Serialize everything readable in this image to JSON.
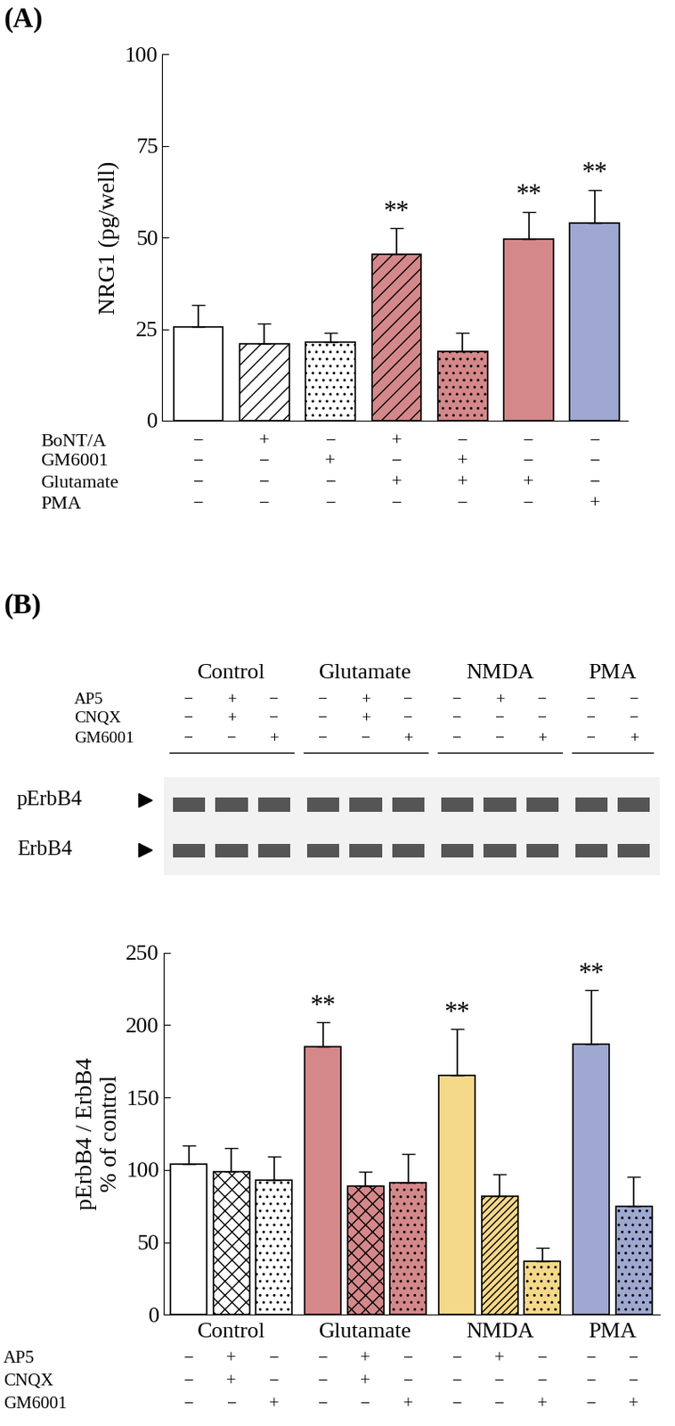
{
  "chart_data": [
    {
      "type": "bar",
      "panel_label": "(A)",
      "ylabel": "NRG1 (pg/well)",
      "values": [
        25.5,
        21,
        21.5,
        45.5,
        19,
        49.5,
        54
      ],
      "error": [
        6,
        5.5,
        2.5,
        7,
        5,
        7.5,
        9
      ],
      "colors": [
        "#ffffff",
        "#ffffff",
        "#ffffff",
        "#d4888a",
        "#d4888a",
        "#d4888a",
        "#9ea8d0"
      ],
      "ylim": [
        0,
        100
      ],
      "yticks": [
        0,
        25,
        50,
        75,
        100
      ],
      "significance": [
        null,
        null,
        null,
        "**",
        null,
        "**",
        "**"
      ],
      "conditions": [
        {
          "name": "BoNT/A",
          "signs": [
            "−",
            "+",
            "−",
            "+",
            "−",
            "−",
            "−"
          ]
        },
        {
          "name": "GM6001",
          "signs": [
            "−",
            "−",
            "+",
            "−",
            "+",
            "−",
            "−"
          ]
        },
        {
          "name": "Glutamate",
          "signs": [
            "−",
            "−",
            "−",
            "+",
            "+",
            "+",
            "−"
          ]
        },
        {
          "name": "PMA",
          "signs": [
            "−",
            "−",
            "−",
            "−",
            "−",
            "−",
            "+"
          ]
        }
      ]
    },
    {
      "type": "bar",
      "panel_label": "(B)",
      "ylabel": "pErbB4 / ErbB4\n% of control",
      "groups": [
        "Control",
        "Control",
        "Control",
        "Glutamate",
        "Glutamate",
        "Glutamate",
        "NMDA",
        "NMDA",
        "NMDA",
        "PMA",
        "PMA"
      ],
      "values": [
        104,
        99,
        93,
        185,
        89,
        91,
        165,
        82,
        37,
        187,
        75
      ],
      "error": [
        13,
        16,
        16,
        17,
        10,
        20,
        32,
        15,
        9,
        37,
        20
      ],
      "colors": [
        "#ffffff",
        "#ffffff",
        "#ffffff",
        "#d4888a",
        "#d4888a",
        "#d4888a",
        "#f5d98a",
        "#f5d98a",
        "#f5d98a",
        "#9ea8d0",
        "#9ea8d0"
      ],
      "ylim": [
        0,
        250
      ],
      "yticks": [
        0,
        50,
        100,
        150,
        200,
        250
      ],
      "significance": [
        null,
        null,
        null,
        "**",
        null,
        null,
        "**",
        null,
        null,
        "**",
        null
      ],
      "conditions": [
        {
          "name": "AP5",
          "signs": [
            "−",
            "+",
            "−",
            "−",
            "+",
            "−",
            "−",
            "+",
            "−",
            "−",
            "−"
          ]
        },
        {
          "name": "CNQX",
          "signs": [
            "−",
            "+",
            "−",
            "−",
            "+",
            "−",
            "−",
            "−",
            "−",
            "−",
            "−"
          ]
        },
        {
          "name": "GM6001",
          "signs": [
            "−",
            "−",
            "+",
            "−",
            "−",
            "+",
            "−",
            "−",
            "+",
            "−",
            "+"
          ]
        }
      ],
      "blot": {
        "rows": [
          "pErbB4",
          "ErbB4"
        ]
      }
    }
  ]
}
